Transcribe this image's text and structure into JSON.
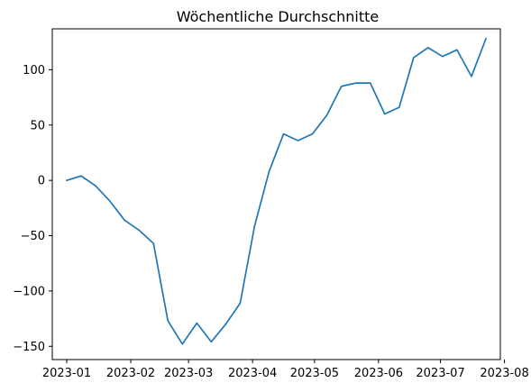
{
  "chart_data": {
    "type": "line",
    "title": "Wöchentliche Durchschnitte",
    "xlabel": "",
    "ylabel": "",
    "x_axis_type": "date",
    "x_range": [
      "2022-12-25",
      "2023-07-30"
    ],
    "ylim": [
      -162,
      137
    ],
    "grid": false,
    "legend": "none",
    "x_ticks": [
      {
        "date": "2023-01-01",
        "label": "2023-01"
      },
      {
        "date": "2023-02-01",
        "label": "2023-02"
      },
      {
        "date": "2023-03-01",
        "label": "2023-03"
      },
      {
        "date": "2023-04-01",
        "label": "2023-04"
      },
      {
        "date": "2023-05-01",
        "label": "2023-05"
      },
      {
        "date": "2023-06-01",
        "label": "2023-06"
      },
      {
        "date": "2023-07-01",
        "label": "2023-07"
      },
      {
        "date": "2023-08-01",
        "label": "2023-08"
      }
    ],
    "y_ticks": [
      {
        "value": 100,
        "label": "100"
      },
      {
        "value": 50,
        "label": "50"
      },
      {
        "value": 0,
        "label": "0"
      },
      {
        "value": -50,
        "label": "−50"
      },
      {
        "value": -100,
        "label": "−100"
      },
      {
        "value": -150,
        "label": "−150"
      }
    ],
    "series": [
      {
        "color": "#1f77b4",
        "points": [
          {
            "x": "2023-01-01",
            "y": 0
          },
          {
            "x": "2023-01-08",
            "y": 4
          },
          {
            "x": "2023-01-15",
            "y": -5
          },
          {
            "x": "2023-01-22",
            "y": -19
          },
          {
            "x": "2023-01-29",
            "y": -36
          },
          {
            "x": "2023-02-05",
            "y": -45
          },
          {
            "x": "2023-02-12",
            "y": -57
          },
          {
            "x": "2023-02-19",
            "y": -127
          },
          {
            "x": "2023-02-26",
            "y": -148
          },
          {
            "x": "2023-03-05",
            "y": -129
          },
          {
            "x": "2023-03-12",
            "y": -146
          },
          {
            "x": "2023-03-19",
            "y": -130
          },
          {
            "x": "2023-03-26",
            "y": -111
          },
          {
            "x": "2023-04-02",
            "y": -41
          },
          {
            "x": "2023-04-09",
            "y": 8
          },
          {
            "x": "2023-04-16",
            "y": 42
          },
          {
            "x": "2023-04-23",
            "y": 36
          },
          {
            "x": "2023-04-30",
            "y": 42
          },
          {
            "x": "2023-05-07",
            "y": 59
          },
          {
            "x": "2023-05-14",
            "y": 85
          },
          {
            "x": "2023-05-21",
            "y": 88
          },
          {
            "x": "2023-05-28",
            "y": 88
          },
          {
            "x": "2023-06-04",
            "y": 60
          },
          {
            "x": "2023-06-11",
            "y": 66
          },
          {
            "x": "2023-06-18",
            "y": 111
          },
          {
            "x": "2023-06-25",
            "y": 120
          },
          {
            "x": "2023-07-02",
            "y": 112
          },
          {
            "x": "2023-07-09",
            "y": 118
          },
          {
            "x": "2023-07-16",
            "y": 94
          },
          {
            "x": "2023-07-23",
            "y": 128
          }
        ]
      }
    ]
  }
}
